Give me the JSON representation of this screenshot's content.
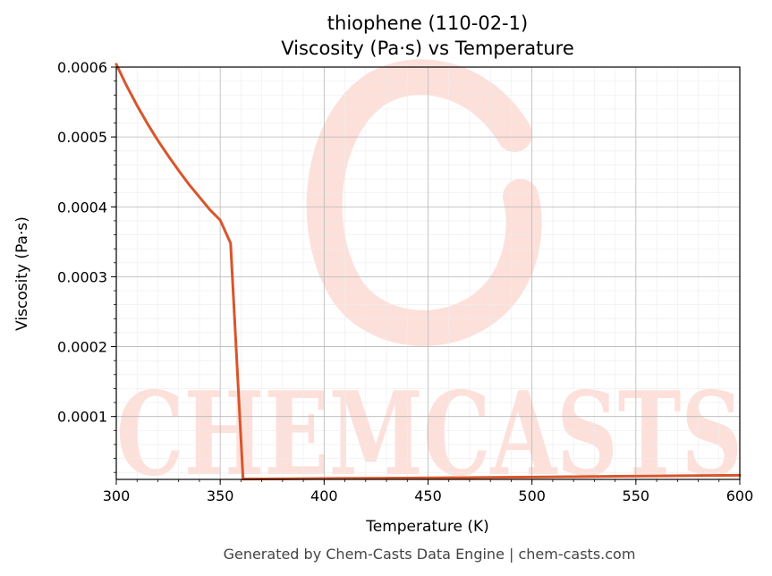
{
  "chart_data": {
    "type": "line",
    "title": "thiophene (110-02-1)",
    "subtitle": "Viscosity (Pa·s) vs Temperature",
    "xlabel": "Temperature (K)",
    "ylabel": "Viscosity (Pa·s)",
    "xlim": [
      300,
      600
    ],
    "ylim": [
      1e-05,
      0.0006
    ],
    "x_ticks": [
      300,
      350,
      400,
      450,
      500,
      550,
      600
    ],
    "y_ticks": [
      0.0001,
      0.0002,
      0.0003,
      0.0004,
      0.0005,
      0.0006
    ],
    "y_tick_labels": [
      "0.0001",
      "0.0002",
      "0.0003",
      "0.0004",
      "0.0005",
      "0.0006"
    ],
    "grid": true,
    "line_color": "#d9552b",
    "series": [
      {
        "x": [
          300,
          305,
          310,
          315,
          320,
          325,
          330,
          335,
          340,
          345,
          350,
          355,
          361,
          380,
          400,
          420,
          440,
          460,
          480,
          500,
          520,
          540,
          560,
          580,
          600
        ],
        "values": [
          0.000604,
          0.000573,
          0.000545,
          0.000519,
          0.000495,
          0.000473,
          0.000452,
          0.000432,
          0.000414,
          0.000396,
          0.000381,
          0.000348,
          1.05e-05,
          1.08e-05,
          1.12e-05,
          1.16e-05,
          1.2e-05,
          1.24e-05,
          1.29e-05,
          1.34e-05,
          1.39e-05,
          1.44e-05,
          1.49e-05,
          1.54e-05,
          1.59e-05
        ]
      }
    ]
  },
  "watermark": {
    "text": "CHEMCASTS",
    "color": "#fde0da"
  },
  "footer": "Generated by Chem-Casts Data Engine | chem-casts.com"
}
